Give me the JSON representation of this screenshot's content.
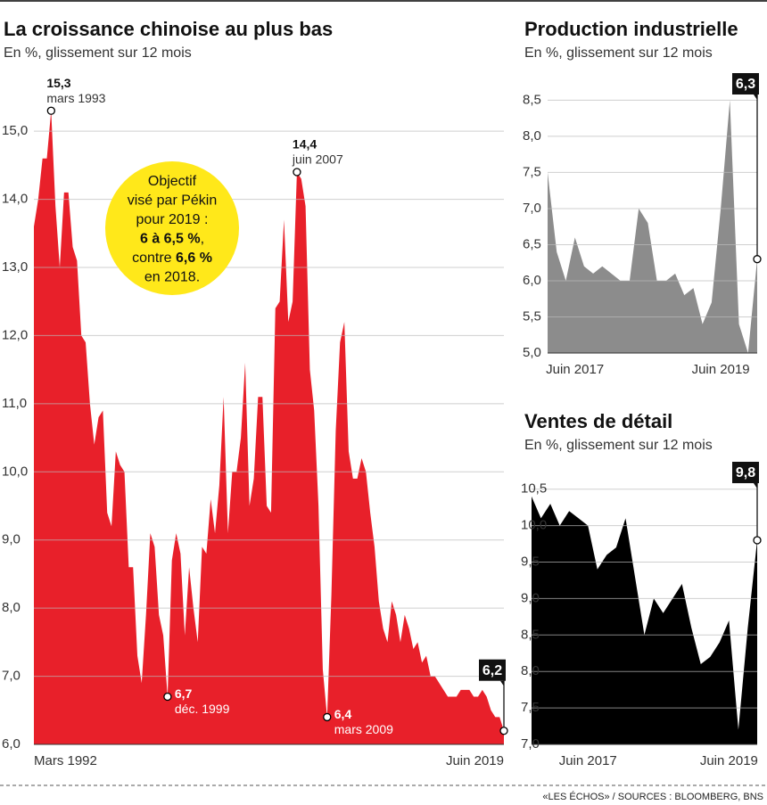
{
  "chart_data": [
    {
      "type": "area",
      "title": "La croissance chinoise au plus bas",
      "subtitle": "En %, glissement sur 12 mois",
      "color": "#e8202a",
      "categories": [
        "Mars 1992",
        null,
        null,
        null,
        null,
        null,
        null,
        null,
        null,
        null,
        null,
        null,
        null,
        null,
        null,
        null,
        null,
        null,
        null,
        null,
        null,
        null,
        null,
        null,
        null,
        null,
        null,
        null,
        null,
        null,
        null,
        null,
        null,
        null,
        null,
        null,
        null,
        null,
        null,
        null,
        null,
        null,
        null,
        null,
        null,
        null,
        null,
        null,
        null,
        null,
        null,
        null,
        null,
        null,
        null,
        null,
        null,
        null,
        null,
        null,
        null,
        null,
        null,
        null,
        null,
        null,
        null,
        null,
        null,
        null,
        null,
        null,
        null,
        null,
        null,
        null,
        null,
        null,
        null,
        null,
        null,
        null,
        null,
        null,
        null,
        null,
        null,
        null,
        null,
        null,
        null,
        null,
        null,
        null,
        null,
        null,
        null,
        null,
        null,
        null,
        null,
        null,
        null,
        null,
        null,
        null,
        null,
        null,
        null,
        "Juin 2019"
      ],
      "values": [
        13.6,
        14.0,
        14.6,
        14.6,
        15.3,
        13.9,
        13.0,
        14.1,
        14.1,
        13.3,
        13.1,
        12.0,
        11.9,
        11.0,
        10.4,
        10.8,
        10.9,
        9.4,
        9.2,
        10.3,
        10.1,
        10.0,
        8.6,
        8.6,
        7.3,
        6.9,
        7.9,
        9.1,
        8.9,
        7.9,
        7.6,
        6.7,
        8.7,
        9.1,
        8.8,
        7.6,
        8.6,
        8.0,
        7.5,
        8.9,
        8.8,
        9.6,
        9.1,
        9.8,
        11.1,
        9.1,
        10.0,
        10.0,
        10.5,
        11.6,
        9.5,
        9.9,
        11.1,
        11.1,
        9.5,
        9.4,
        12.4,
        12.5,
        13.7,
        12.2,
        12.5,
        14.4,
        14.3,
        13.9,
        11.5,
        10.9,
        9.5,
        7.1,
        6.4,
        8.2,
        10.6,
        11.9,
        12.2,
        10.3,
        9.9,
        9.9,
        10.2,
        10.0,
        9.4,
        8.9,
        8.1,
        7.7,
        7.5,
        8.1,
        7.9,
        7.5,
        7.9,
        7.7,
        7.4,
        7.5,
        7.2,
        7.3,
        7.0,
        7.0,
        6.9,
        6.8,
        6.7,
        6.7,
        6.7,
        6.8,
        6.8,
        6.8,
        6.7,
        6.7,
        6.8,
        6.7,
        6.5,
        6.4,
        6.4,
        6.2
      ],
      "value_labels": [
        null,
        null,
        null,
        null,
        "15,3",
        null,
        null,
        null,
        null,
        null,
        null,
        null,
        null,
        null,
        null,
        null,
        null,
        null,
        null,
        null,
        null,
        null,
        null,
        null,
        null,
        null,
        null,
        null,
        null,
        null,
        null,
        "6,7",
        null,
        null,
        null,
        null,
        null,
        null,
        null,
        null,
        null,
        null,
        null,
        null,
        null,
        null,
        null,
        null,
        null,
        null,
        null,
        null,
        null,
        null,
        null,
        null,
        null,
        null,
        null,
        null,
        null,
        "14,4",
        null,
        null,
        null,
        null,
        null,
        null,
        "6,4",
        null,
        null,
        null,
        null,
        null,
        null,
        null,
        null,
        null,
        null,
        null,
        null,
        null,
        null,
        null,
        null,
        null,
        null,
        null,
        null,
        null,
        null,
        null,
        null,
        null,
        null,
        null,
        null,
        null,
        null,
        null,
        null,
        null,
        null,
        null,
        null,
        null,
        null,
        null,
        null,
        "6,2"
      ],
      "point_notes": [
        null,
        null,
        null,
        null,
        "mars 1993",
        null,
        null,
        null,
        null,
        null,
        null,
        null,
        null,
        null,
        null,
        null,
        null,
        null,
        null,
        null,
        null,
        null,
        null,
        null,
        null,
        null,
        null,
        null,
        null,
        null,
        null,
        "déc. 1999",
        null,
        null,
        null,
        null,
        null,
        null,
        null,
        null,
        null,
        null,
        null,
        null,
        null,
        null,
        null,
        null,
        null,
        null,
        null,
        null,
        null,
        null,
        null,
        null,
        null,
        null,
        null,
        null,
        null,
        "juin 2007",
        null,
        null,
        null,
        null,
        null,
        null,
        "mars 2009",
        null,
        null,
        null,
        null,
        null,
        null,
        null,
        null,
        null,
        null,
        null,
        null,
        null,
        null,
        null,
        null,
        null,
        null,
        null,
        null,
        null,
        null,
        null,
        null,
        null,
        null,
        null,
        null,
        null,
        null,
        null,
        null,
        null,
        null,
        null,
        null,
        null,
        null,
        null,
        null
      ],
      "ylim": [
        6,
        15.8
      ],
      "yticks": [
        {
          "value": 6,
          "label": "6,0"
        },
        {
          "value": 7,
          "label": "7,0"
        },
        {
          "value": 8,
          "label": "8,0"
        },
        {
          "value": 9,
          "label": "9,0"
        },
        {
          "value": 10,
          "label": "10,0"
        },
        {
          "value": 11,
          "label": "11,0"
        },
        {
          "value": 12,
          "label": "12,0"
        },
        {
          "value": 13,
          "label": "13,0"
        },
        {
          "value": 14,
          "label": "14,0"
        },
        {
          "value": 15,
          "label": "15,0"
        }
      ],
      "grid": true
    },
    {
      "type": "area",
      "title": "Production industrielle",
      "subtitle": "En %, glissement sur 12 mois",
      "color": "#8c8c8c",
      "categories": [
        null,
        null,
        null,
        "Juin 2017",
        null,
        null,
        null,
        null,
        null,
        null,
        null,
        null,
        null,
        null,
        null,
        null,
        null,
        null,
        null,
        "Juin 2019",
        null,
        null,
        null,
        null
      ],
      "values": [
        7.5,
        6.4,
        6.0,
        6.6,
        6.2,
        6.1,
        6.2,
        6.1,
        6.0,
        6.0,
        7.0,
        6.8,
        6.0,
        6.0,
        6.1,
        5.8,
        5.9,
        5.4,
        5.7,
        7.0,
        8.5,
        5.4,
        5.0,
        6.3
      ],
      "value_labels": [
        null,
        null,
        null,
        null,
        null,
        null,
        null,
        null,
        null,
        null,
        null,
        null,
        null,
        null,
        null,
        null,
        null,
        null,
        null,
        null,
        null,
        null,
        null,
        "6,3"
      ],
      "ylim": [
        5,
        8.9
      ],
      "yticks": [
        {
          "value": 5,
          "label": "5,0"
        },
        {
          "value": 5.5,
          "label": "5,5"
        },
        {
          "value": 6,
          "label": "6,0"
        },
        {
          "value": 6.5,
          "label": "6,5"
        },
        {
          "value": 7,
          "label": "7,0"
        },
        {
          "value": 7.5,
          "label": "7,5"
        },
        {
          "value": 8,
          "label": "8,0"
        },
        {
          "value": 8.5,
          "label": "8,5"
        }
      ],
      "grid": true
    },
    {
      "type": "area",
      "title": "Ventes de détail",
      "subtitle": "En %, glissement sur 12 mois",
      "color": "#000000",
      "categories": [
        null,
        null,
        null,
        null,
        null,
        null,
        "Juin 2017",
        null,
        null,
        null,
        null,
        null,
        null,
        null,
        null,
        null,
        null,
        null,
        null,
        null,
        null,
        "Juin 2019",
        null,
        null,
        null
      ],
      "values": [
        10.4,
        10.1,
        10.3,
        10.0,
        10.2,
        10.1,
        10.0,
        9.4,
        9.6,
        9.7,
        10.1,
        9.3,
        8.5,
        9.0,
        8.8,
        9.0,
        9.2,
        8.6,
        8.1,
        8.2,
        8.4,
        8.7,
        7.2,
        8.6,
        9.8
      ],
      "value_labels": [
        null,
        null,
        null,
        null,
        null,
        null,
        null,
        null,
        null,
        null,
        null,
        null,
        null,
        null,
        null,
        null,
        null,
        null,
        null,
        null,
        null,
        null,
        null,
        null,
        "9,8"
      ],
      "ylim": [
        7,
        10.9
      ],
      "yticks": [
        {
          "value": 7,
          "label": "7,0"
        },
        {
          "value": 7.5,
          "label": "7,5"
        },
        {
          "value": 8,
          "label": "8,0"
        },
        {
          "value": 8.5,
          "label": "8,5"
        },
        {
          "value": 9,
          "label": "9,0"
        },
        {
          "value": 9.5,
          "label": "9,5"
        },
        {
          "value": 10,
          "label": "10,0"
        },
        {
          "value": 10.5,
          "label": "10,5"
        }
      ],
      "grid": true
    }
  ],
  "note": [
    [
      {
        "text": "Objectif",
        "bold": false
      }
    ],
    [
      {
        "text": "visé par Pékin",
        "bold": false
      }
    ],
    [
      {
        "text": "pour 2019 :",
        "bold": false
      }
    ],
    [
      {
        "text": "6 à 6,5 %",
        "bold": true
      },
      {
        "text": ",",
        "bold": false
      }
    ],
    [
      {
        "text": "contre ",
        "bold": false
      },
      {
        "text": "6,6 %",
        "bold": true
      }
    ],
    [
      {
        "text": "en 2018.",
        "bold": false
      }
    ]
  ],
  "source": "«LES ÉCHOS» / SOURCES : BLOOMBERG, BNS"
}
